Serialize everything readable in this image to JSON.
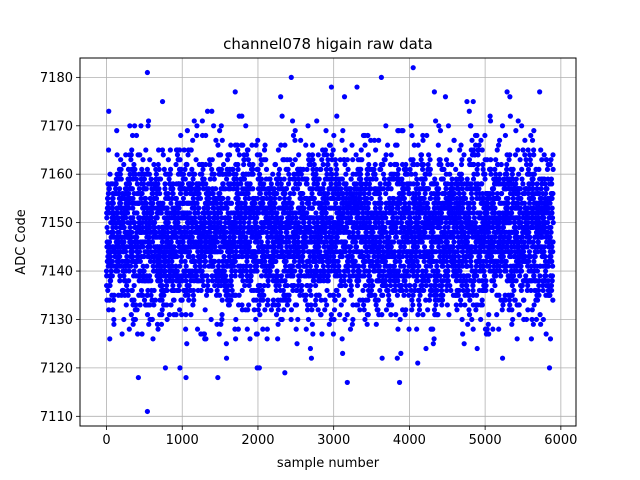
{
  "chart_data": {
    "type": "scatter",
    "title": "channel078 higain raw data",
    "xlabel": "sample number",
    "ylabel": "ADC Code",
    "xlim": [
      -350,
      6200
    ],
    "ylim": [
      7108,
      7184
    ],
    "xticks": [
      0,
      1000,
      2000,
      3000,
      4000,
      5000,
      6000
    ],
    "yticks": [
      7110,
      7120,
      7130,
      7140,
      7150,
      7160,
      7170,
      7180
    ],
    "grid": true,
    "marker_color": "#0000ff",
    "n_points": 5900,
    "distribution": {
      "center": 7148,
      "spread": 8.5,
      "min": 7111,
      "max": 7182
    },
    "notable_points": [
      {
        "x": 540,
        "y": 7181
      },
      {
        "x": 4050,
        "y": 7182
      },
      {
        "x": 2440,
        "y": 7180
      },
      {
        "x": 3630,
        "y": 7180
      },
      {
        "x": 540,
        "y": 7111
      },
      {
        "x": 3180,
        "y": 7117
      },
      {
        "x": 3870,
        "y": 7117
      },
      {
        "x": 970,
        "y": 7120
      },
      {
        "x": 1990,
        "y": 7120
      },
      {
        "x": 5850,
        "y": 7120
      },
      {
        "x": 1050,
        "y": 7118
      },
      {
        "x": 1470,
        "y": 7118
      },
      {
        "x": 740,
        "y": 7175
      },
      {
        "x": 2300,
        "y": 7176
      },
      {
        "x": 4330,
        "y": 7177
      },
      {
        "x": 5720,
        "y": 7177
      },
      {
        "x": 1700,
        "y": 7177
      },
      {
        "x": 5290,
        "y": 7177
      },
      {
        "x": 30,
        "y": 7173
      },
      {
        "x": 4760,
        "y": 7175
      }
    ]
  }
}
